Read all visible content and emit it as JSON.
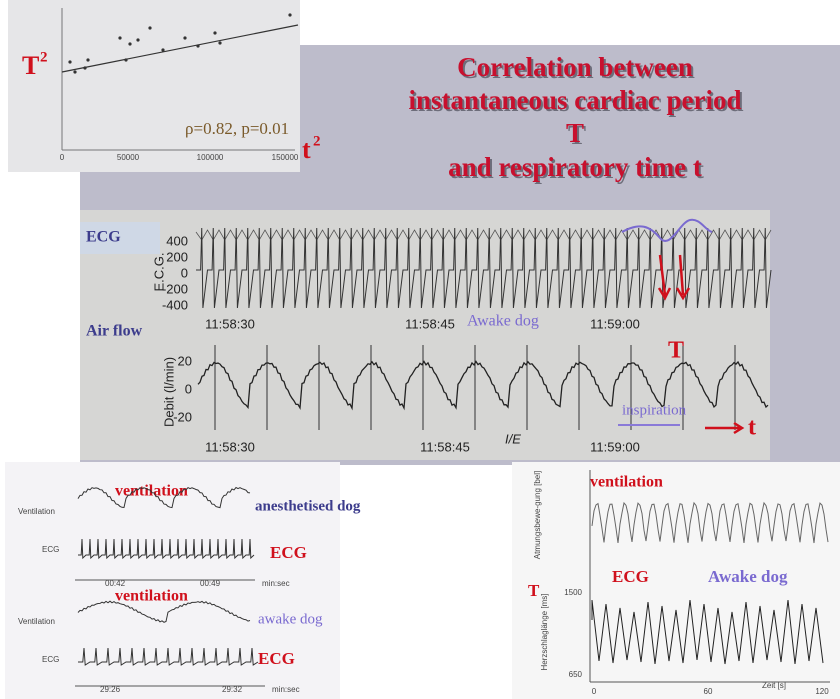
{
  "title": [
    "Correlation between",
    "instantaneous cardiac period",
    "T",
    "and respiratory time t"
  ],
  "scatter_photo": {
    "y_label": "T",
    "y_label_sup": "2",
    "x_label": "t",
    "x_label_sup": "2",
    "stats": "ρ=0.82, p=0.01",
    "x_ticks": [
      "0",
      "50000",
      "100000",
      "150000"
    ]
  },
  "ecg_airflow_photo": {
    "ecg_label": "ECG",
    "ecg_axis": "E.C.G.",
    "ecg_ticks": [
      "400",
      "200",
      "0",
      "-200",
      "-400"
    ],
    "ecg_times": [
      "11:58:30",
      "11:58:45",
      "11:59:00"
    ],
    "awake": "Awake dog",
    "period_label": "T",
    "airflow_label": "Air flow",
    "airflow_axis": "Debit (l/min)",
    "airflow_ticks": [
      "20",
      "0",
      "-20"
    ],
    "airflow_times": [
      "11:58:30",
      "11:58:45",
      "11:59:00"
    ],
    "ie": "I/E",
    "inspiration": "inspiration",
    "time_label": "t"
  },
  "anesthetised_photo": {
    "ventilation_1": "ventilation",
    "dog_1": "anesthetised dog",
    "axis_vent_1": "Ventilation",
    "axis_ecg_1": "ECG",
    "ecg_1": "ECG",
    "times_1": [
      "00:42",
      "00:49",
      "min:sec"
    ],
    "ventilation_2": "ventilation",
    "dog_2": "awake dog",
    "axis_vent_2": "Ventilation",
    "axis_ecg_2": "ECG",
    "ecg_2": "ECG",
    "times_2": [
      "29:26",
      "29:32",
      "min:sec"
    ]
  },
  "awake_photo": {
    "ventilation": "ventilation",
    "axis_vent": "Atmungsbewe-gung [bel]",
    "period_label": "T",
    "ecg": "ECG",
    "dog": "Awake dog",
    "axis_hr": "Herzschlaglänge [ms]",
    "y_ticks": [
      "1500",
      "650"
    ],
    "x_ticks": [
      "0",
      "60",
      "120"
    ],
    "x_label": "Zeit [s]"
  }
}
